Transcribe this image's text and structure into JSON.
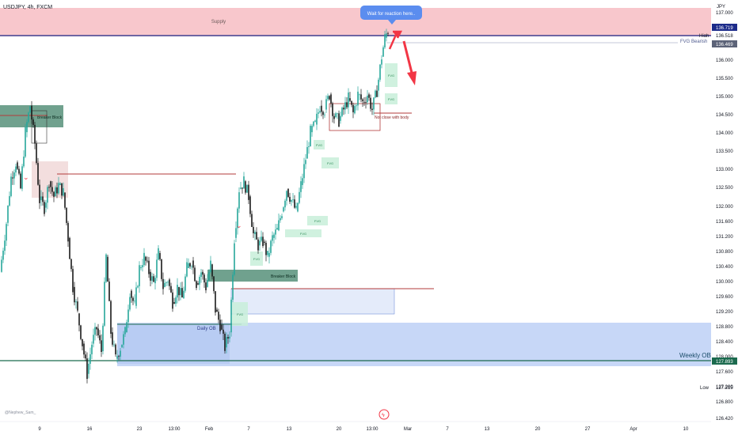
{
  "symbol": {
    "title": "USDJPY, 4h, FXCM"
  },
  "currency": "JPY",
  "watermark": "@Nephew_Sam_",
  "colors": {
    "bull": "#26a69a",
    "bear": "#1a1a1a",
    "supply": "#f8c7cc",
    "weeklyOB": "#c7d7f7",
    "fvgBull": "#c8efd9",
    "breaker": "#4c8a72",
    "arrow": "#f23645",
    "callout": "#5b8def",
    "highLine": "#1c2b8a",
    "weeklyLine": "#1b6a4e",
    "redLine": "#b33b3b"
  },
  "zones": {
    "supply": "Supply",
    "breaker_left": "Breaker Block",
    "breaker_mid": "Breaker Block",
    "daily_ob": "Daily OB",
    "weekly_ob": "Weekly OB",
    "not_close": "Not close with body",
    "fvg": "FVG",
    "callout": "Wait for reaction here.."
  },
  "price_labels": {
    "high_tag": "High",
    "high_value": "136.518",
    "current_value": "136.719",
    "fvg_tag": "FVG Bearish",
    "fvg_value": "136.469",
    "low_tag": "Low",
    "low_value": "127.215",
    "weekly_value": "127.893"
  },
  "chart_data": {
    "type": "candlestick",
    "title": "USDJPY, 4h, FXCM",
    "y_ticks": [
      "137.000",
      "136.518",
      "136.000",
      "135.500",
      "135.000",
      "134.500",
      "134.000",
      "133.500",
      "133.000",
      "132.500",
      "132.000",
      "131.600",
      "131.200",
      "130.800",
      "130.400",
      "130.000",
      "129.600",
      "129.200",
      "128.800",
      "128.400",
      "128.000",
      "127.600",
      "127.200",
      "126.800",
      "126.420"
    ],
    "x_ticks": [
      "9",
      "16",
      "23",
      "13:00",
      "Feb",
      "7",
      "13",
      "20",
      "13:00",
      "Mar",
      "7",
      "13",
      "20",
      "27",
      "Apr",
      "10"
    ],
    "ylim": [
      126.3,
      137.4
    ],
    "high": 136.518,
    "low": 127.215,
    "last": 136.719,
    "path_approx": [
      [
        0,
        130.2
      ],
      [
        8,
        131.5
      ],
      [
        14,
        132.7
      ],
      [
        20,
        133.1
      ],
      [
        26,
        132.4
      ],
      [
        32,
        133.9
      ],
      [
        38,
        134.6
      ],
      [
        44,
        133.6
      ],
      [
        50,
        132.1
      ],
      [
        56,
        131.9
      ],
      [
        62,
        132.6
      ],
      [
        68,
        132.2
      ],
      [
        74,
        132.5
      ],
      [
        80,
        132.3
      ],
      [
        86,
        131.1
      ],
      [
        92,
        129.8
      ],
      [
        98,
        129.1
      ],
      [
        104,
        128.3
      ],
      [
        110,
        127.5
      ],
      [
        116,
        128.3
      ],
      [
        122,
        128.7
      ],
      [
        128,
        128.1
      ],
      [
        134,
        130.6
      ],
      [
        140,
        128.6
      ],
      [
        146,
        127.9
      ],
      [
        152,
        128.2
      ],
      [
        158,
        128.6
      ],
      [
        164,
        129.7
      ],
      [
        170,
        129.3
      ],
      [
        176,
        130.3
      ],
      [
        182,
        130.6
      ],
      [
        188,
        130.2
      ],
      [
        194,
        129.9
      ],
      [
        200,
        130.7
      ],
      [
        206,
        129.8
      ],
      [
        212,
        130.0
      ],
      [
        218,
        129.4
      ],
      [
        224,
        129.8
      ],
      [
        230,
        129.5
      ],
      [
        236,
        130.3
      ],
      [
        242,
        130.5
      ],
      [
        248,
        129.9
      ],
      [
        254,
        130.2
      ],
      [
        260,
        129.8
      ],
      [
        266,
        130.4
      ],
      [
        272,
        129.2
      ],
      [
        278,
        128.8
      ],
      [
        284,
        128.2
      ],
      [
        290,
        128.6
      ],
      [
        296,
        131.1
      ],
      [
        302,
        132.4
      ],
      [
        308,
        132.6
      ],
      [
        314,
        132.2
      ],
      [
        320,
        131.2
      ],
      [
        326,
        130.9
      ],
      [
        332,
        131.0
      ],
      [
        338,
        130.6
      ],
      [
        344,
        131.1
      ],
      [
        350,
        131.3
      ],
      [
        356,
        131.8
      ],
      [
        362,
        132.4
      ],
      [
        368,
        132.1
      ],
      [
        374,
        131.8
      ],
      [
        380,
        132.5
      ],
      [
        386,
        133.2
      ],
      [
        392,
        133.9
      ],
      [
        398,
        134.1
      ],
      [
        404,
        134.6
      ],
      [
        410,
        134.5
      ],
      [
        416,
        134.9
      ],
      [
        422,
        134.3
      ],
      [
        428,
        134.2
      ],
      [
        434,
        134.5
      ],
      [
        440,
        134.8
      ],
      [
        446,
        134.4
      ],
      [
        452,
        134.9
      ],
      [
        458,
        134.7
      ],
      [
        464,
        134.9
      ],
      [
        470,
        134.5
      ],
      [
        476,
        135.0
      ],
      [
        482,
        135.9
      ],
      [
        486,
        136.4
      ],
      [
        490,
        136.6
      ]
    ]
  }
}
